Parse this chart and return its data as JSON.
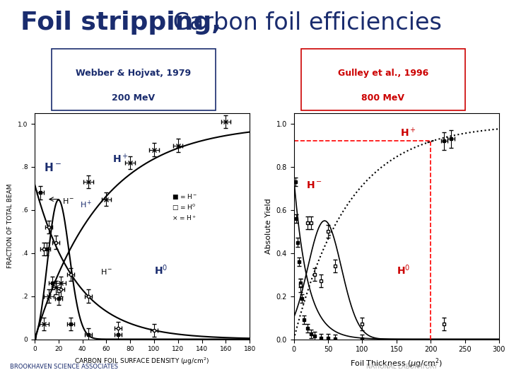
{
  "title_bold": "Foil stripping,",
  "title_normal": " Carbon foil efficiencies",
  "title_color": "#1a2c6e",
  "title_fontsize": 26,
  "left_box_line1": "Webber & Hojvat, 1979",
  "left_box_line2": "200 MeV",
  "left_box_color": "#1a2c6e",
  "right_box_line1": "Gulley et al., 1996",
  "right_box_line2": "800 MeV",
  "right_box_color": "#cc0000",
  "bg_color": "#ffffff",
  "panel_bg_right": "#dde5f0",
  "footer_left": "BROOKHAVEN SCIENCE ASSOCIATES",
  "footer_right": "NATIONAL LABORATORY",
  "footer_color": "#1a2c6e",
  "footer_right_color": "#aaaaaa"
}
